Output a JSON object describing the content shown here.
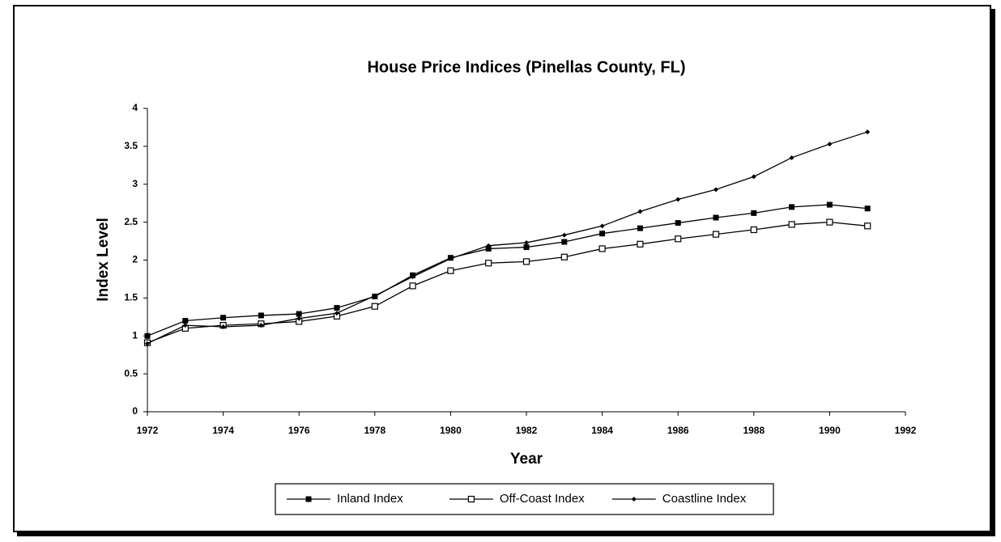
{
  "chart_data": {
    "type": "line",
    "title": "House Price Indices (Pinellas County, FL)",
    "x_label": "Year",
    "y_label": "Index Level",
    "x": [
      1972,
      1973,
      1974,
      1975,
      1976,
      1977,
      1978,
      1979,
      1980,
      1981,
      1982,
      1983,
      1984,
      1985,
      1986,
      1987,
      1988,
      1989,
      1990,
      1991
    ],
    "series": [
      {
        "name": "Inland Index",
        "color": "#000000",
        "marker": "filled-square",
        "values": [
          1.0,
          1.2,
          1.24,
          1.27,
          1.29,
          1.37,
          1.52,
          1.8,
          2.03,
          2.15,
          2.17,
          2.24,
          2.35,
          2.42,
          2.49,
          2.56,
          2.62,
          2.7,
          2.73,
          2.68
        ]
      },
      {
        "name": "Off-Coast Index",
        "color": "#000000",
        "marker": "open-square",
        "values": [
          0.91,
          1.1,
          1.14,
          1.16,
          1.19,
          1.26,
          1.39,
          1.66,
          1.86,
          1.96,
          1.98,
          2.04,
          2.15,
          2.21,
          2.28,
          2.34,
          2.4,
          2.47,
          2.5,
          2.45
        ]
      },
      {
        "name": "Coastline Index",
        "color": "#000000",
        "marker": "diamond",
        "values": [
          0.9,
          1.14,
          1.12,
          1.14,
          1.23,
          1.3,
          1.53,
          1.78,
          2.02,
          2.19,
          2.23,
          2.33,
          2.45,
          2.64,
          2.8,
          2.93,
          3.1,
          3.35,
          3.53,
          3.69
        ]
      }
    ],
    "xlim": [
      1972,
      1992
    ],
    "xticks": [
      1972,
      1974,
      1976,
      1978,
      1980,
      1982,
      1984,
      1986,
      1988,
      1990,
      1992
    ],
    "ylim": [
      0,
      4
    ],
    "yticks": [
      0,
      0.5,
      1,
      1.5,
      2,
      2.5,
      3,
      3.5,
      4
    ],
    "grid": false,
    "legend": "bottom"
  }
}
